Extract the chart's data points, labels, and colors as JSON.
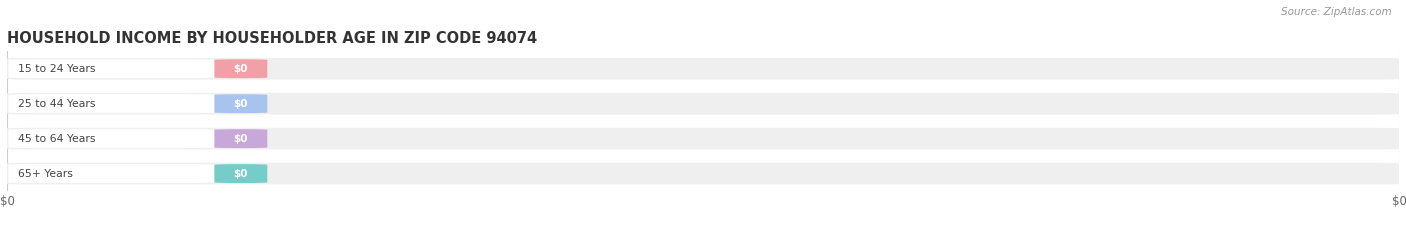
{
  "title": "HOUSEHOLD INCOME BY HOUSEHOLDER AGE IN ZIP CODE 94074",
  "source_text": "Source: ZipAtlas.com",
  "categories": [
    "15 to 24 Years",
    "25 to 44 Years",
    "45 to 64 Years",
    "65+ Years"
  ],
  "values": [
    0,
    0,
    0,
    0
  ],
  "bar_colors": [
    "#f2a0a8",
    "#a8c4ee",
    "#c8a8d8",
    "#76ccc8"
  ],
  "background_color": "#ffffff",
  "bar_bg_color": "#efefef",
  "title_fontsize": 10.5,
  "source_fontsize": 8,
  "xlim": [
    0,
    1
  ],
  "bar_height": 0.62,
  "figsize": [
    14.06,
    2.33
  ],
  "dpi": 100
}
